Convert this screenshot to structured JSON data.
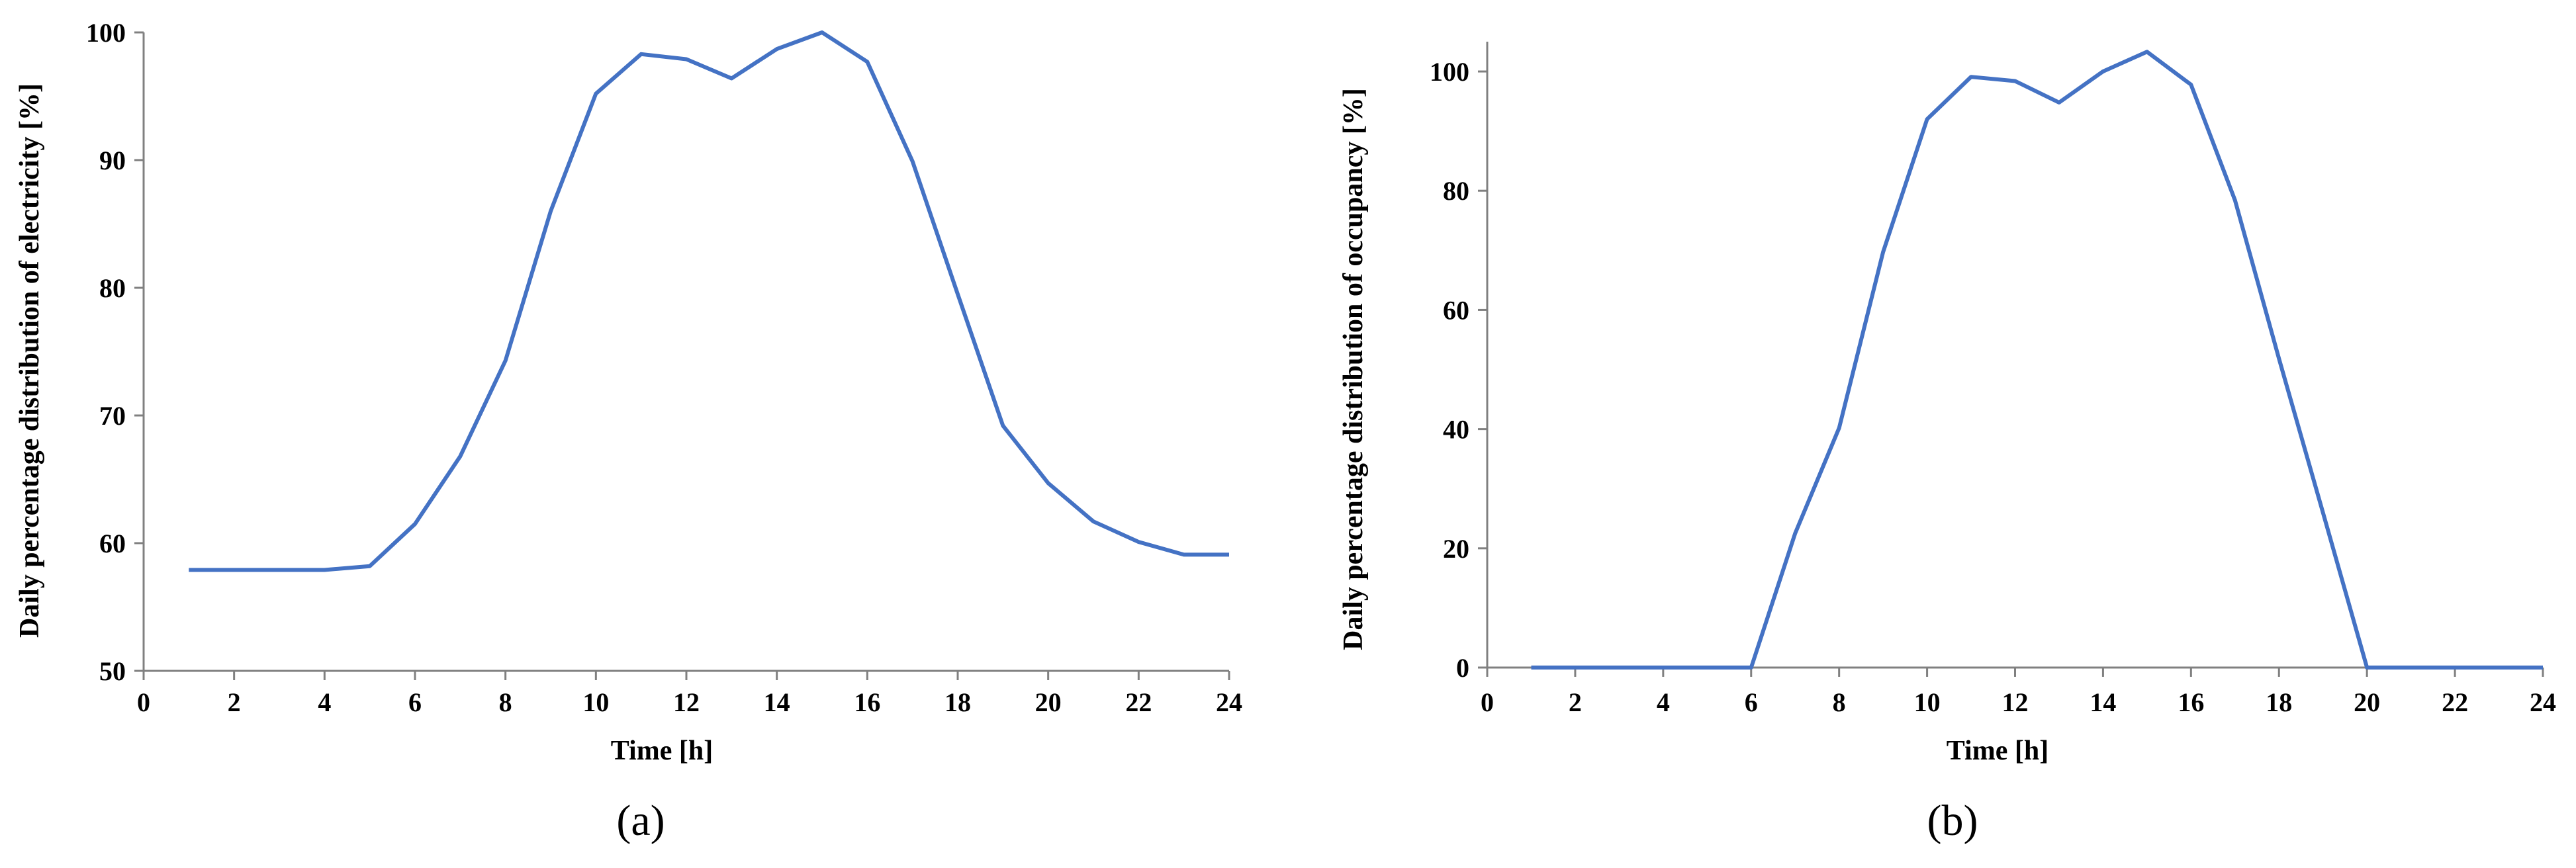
{
  "chart_data": [
    {
      "type": "line",
      "panel_label": "(a)",
      "xlabel": "Time [h]",
      "ylabel": "Daily percentage distribution of  electricity [%]",
      "xlim": [
        0,
        24
      ],
      "ylim": [
        50,
        100
      ],
      "xticks": [
        0,
        2,
        4,
        6,
        8,
        10,
        12,
        14,
        16,
        18,
        20,
        22,
        24
      ],
      "yticks": [
        50,
        60,
        70,
        80,
        90,
        100
      ],
      "grid": false,
      "series": [
        {
          "x": [
            1,
            2,
            3,
            4,
            5,
            6,
            7,
            8,
            9,
            10,
            11,
            12,
            13,
            14,
            15,
            16,
            17,
            18,
            19,
            20,
            21,
            22,
            23,
            24
          ],
          "y": [
            57.9,
            57.9,
            57.9,
            57.9,
            58.2,
            61.5,
            66.8,
            74.3,
            86.0,
            95.2,
            98.3,
            97.9,
            96.4,
            98.7,
            100.0,
            97.7,
            89.9,
            79.5,
            69.2,
            64.7,
            61.7,
            60.1,
            59.1,
            59.1
          ]
        }
      ]
    },
    {
      "type": "line",
      "panel_label": "(b)",
      "xlabel": "Time  [h]",
      "ylabel": "Daily percentage distribution of occupancy [%]",
      "xlim": [
        0,
        24
      ],
      "ylim": [
        0,
        105
      ],
      "xticks": [
        0,
        2,
        4,
        6,
        8,
        10,
        12,
        14,
        16,
        18,
        20,
        22,
        24
      ],
      "yticks": [
        0,
        20,
        40,
        60,
        80,
        100
      ],
      "grid": false,
      "series": [
        {
          "x": [
            1,
            2,
            3,
            4,
            5,
            6,
            7,
            8,
            9,
            10,
            11,
            12,
            13,
            14,
            15,
            16,
            17,
            18,
            19,
            20,
            21,
            22,
            23,
            24
          ],
          "y": [
            0,
            0,
            0,
            0,
            0,
            0,
            22.5,
            40.2,
            69.7,
            92.0,
            99.1,
            98.4,
            94.8,
            100.0,
            103.3,
            97.8,
            78.4,
            51.8,
            26.0,
            0,
            0,
            0,
            0,
            0
          ]
        }
      ]
    }
  ]
}
